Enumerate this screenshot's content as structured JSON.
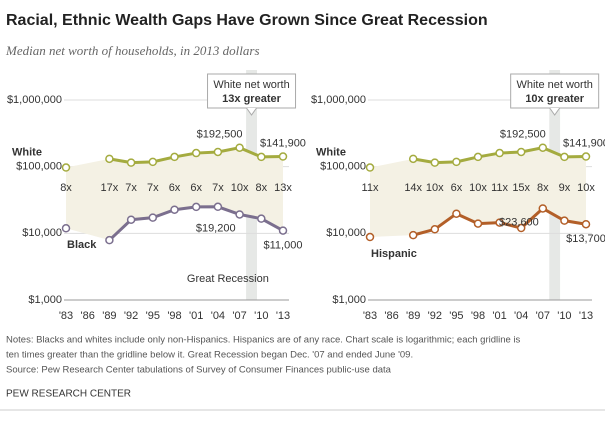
{
  "title": "Racial, Ethnic Wealth Gaps Have Grown Since Great Recession",
  "subtitle": "Median net worth of households, in 2013 dollars",
  "notes": [
    "Notes: Blacks and whites include only non-Hispanics. Hispanics are of any race. Chart scale is logarithmic; each gridline is",
    "ten times greater than the gridline below it. Great Recession began Dec. '07 and ended June '09.",
    "Source: Pew Research Center tabulations of Survey of Consumer Finances public-use data"
  ],
  "footer": "PEW RESEARCH CENTER",
  "chart_data": [
    {
      "type": "line",
      "log_scale": true,
      "grid": true,
      "categories": [
        "'83",
        "'86",
        "'89",
        "'92",
        "'95",
        "'98",
        "'01",
        "'04",
        "'07",
        "'10",
        "'13"
      ],
      "ylim": [
        1000,
        1000000
      ],
      "yticks": [
        {
          "value": 1000,
          "label": "$1,000"
        },
        {
          "value": 10000,
          "label": "$10,000"
        },
        {
          "value": 100000,
          "label": "$100,000"
        },
        {
          "value": 1000000,
          "label": "$1,000,000"
        }
      ],
      "callout": [
        "White net worth",
        "13x greater"
      ],
      "recession_label": "Great Recession",
      "ratio_labels": [
        "8x",
        null,
        "17x",
        "7x",
        "7x",
        "6x",
        "6x",
        "7x",
        "10x",
        "8x",
        "13x"
      ],
      "series": [
        {
          "name": "White",
          "color": "#a4ab3f",
          "values": [
            97000,
            null,
            131000,
            115000,
            118000,
            140000,
            160000,
            166000,
            192500,
            140000,
            141900
          ],
          "value_labels": [
            null,
            null,
            null,
            null,
            null,
            null,
            null,
            null,
            "$192,500",
            null,
            "$141,900"
          ]
        },
        {
          "name": "Black",
          "color": "#7b6f8e",
          "values": [
            11900,
            null,
            7900,
            16000,
            17200,
            22600,
            24900,
            25000,
            19200,
            16600,
            11000
          ],
          "value_labels": [
            null,
            null,
            null,
            null,
            null,
            null,
            null,
            null,
            "$19,200",
            null,
            "$11,000"
          ]
        }
      ]
    },
    {
      "type": "line",
      "log_scale": true,
      "grid": true,
      "categories": [
        "'83",
        "'86",
        "'89",
        "'92",
        "'95",
        "'98",
        "'01",
        "'04",
        "'07",
        "'10",
        "'13"
      ],
      "ylim": [
        1000,
        1000000
      ],
      "yticks": [
        {
          "value": 1000,
          "label": "$1,000"
        },
        {
          "value": 10000,
          "label": "$10,000"
        },
        {
          "value": 100000,
          "label": "$100,000"
        },
        {
          "value": 1000000,
          "label": "$1,000,000"
        }
      ],
      "callout": [
        "White net worth",
        "10x greater"
      ],
      "ratio_labels": [
        "11x",
        null,
        "14x",
        "10x",
        "6x",
        "10x",
        "11x",
        "15x",
        "8x",
        "9x",
        "10x"
      ],
      "series": [
        {
          "name": "White",
          "color": "#a4ab3f",
          "values": [
            97000,
            null,
            131000,
            115000,
            118000,
            140000,
            160000,
            166000,
            192500,
            140000,
            141900
          ],
          "value_labels": [
            null,
            null,
            null,
            null,
            null,
            null,
            null,
            null,
            "$192,500",
            null,
            "$141,900"
          ]
        },
        {
          "name": "Hispanic",
          "color": "#b35f28",
          "values": [
            8800,
            null,
            9400,
            11500,
            19700,
            14000,
            14500,
            12000,
            23600,
            15500,
            13700
          ],
          "value_labels": [
            null,
            null,
            null,
            null,
            null,
            null,
            null,
            null,
            "$23,600",
            null,
            "$13,700"
          ]
        }
      ]
    }
  ]
}
